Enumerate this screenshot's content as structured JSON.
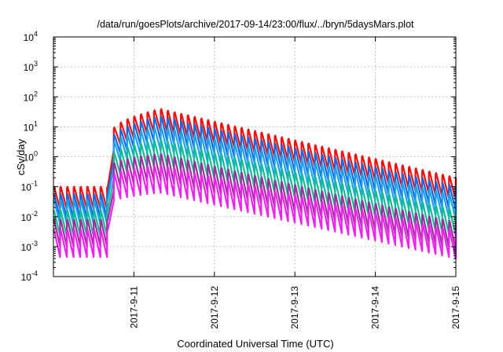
{
  "chart_data": {
    "type": "line",
    "title": "/data/run/goesPlots/archive/2017-09-14/23:00/flux/../bryn/5daysMars.plot",
    "xlabel": "Coordinated Universal Time (UTC)",
    "ylabel": "cSv/day",
    "yscale": "log",
    "ylim_exponents": [
      -4,
      4
    ],
    "xlim_days": [
      0,
      5
    ],
    "grid": true,
    "y_ticks": [
      {
        "base": "10",
        "exp": "-4"
      },
      {
        "base": "10",
        "exp": "-3"
      },
      {
        "base": "10",
        "exp": "-2"
      },
      {
        "base": "10",
        "exp": "-1"
      },
      {
        "base": "10",
        "exp": "0"
      },
      {
        "base": "10",
        "exp": "1"
      },
      {
        "base": "10",
        "exp": "2"
      },
      {
        "base": "10",
        "exp": "3"
      },
      {
        "base": "10",
        "exp": "4"
      }
    ],
    "x_ticks": [
      "2017-9-11",
      "2017-9-12",
      "2017-9-13",
      "2017-9-14",
      "2017-9-15"
    ],
    "x_tick_days": [
      1,
      2,
      3,
      4,
      5
    ],
    "event_day": 0.72,
    "sawtooth_period_days": 0.0833,
    "series": [
      {
        "color": "#ee1111",
        "pre_log10": -1.0,
        "post_peak_log10": 1.6,
        "end_log10": -0.7,
        "amp": 0.75
      },
      {
        "color": "#1a66dd",
        "pre_log10": -1.25,
        "post_peak_log10": 1.35,
        "end_log10": -1.0,
        "amp": 0.8
      },
      {
        "color": "#1aa3ee",
        "pre_log10": -1.45,
        "post_peak_log10": 1.0,
        "end_log10": -1.3,
        "amp": 0.8
      },
      {
        "color": "#11bb99",
        "pre_log10": -1.8,
        "post_peak_log10": 0.55,
        "end_log10": -1.8,
        "amp": 0.85
      },
      {
        "color": "#993399",
        "pre_log10": -2.1,
        "post_peak_log10": 0.1,
        "end_log10": -2.2,
        "amp": 0.9
      },
      {
        "color": "#ee22ee",
        "pre_log10": -2.45,
        "post_peak_log10": -0.3,
        "end_log10": -2.5,
        "amp": 0.9
      }
    ]
  }
}
